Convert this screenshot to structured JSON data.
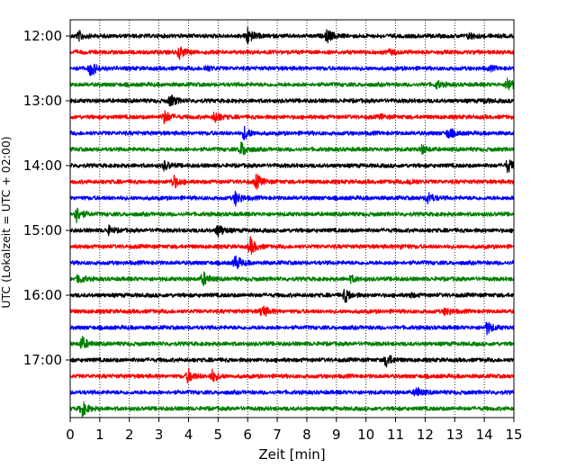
{
  "chart_data": {
    "type": "line",
    "title": "",
    "xlabel": "Zeit  [min]",
    "ylabel": "UTC (Lokalzeit = UTC + 02:00)",
    "xlim": [
      0,
      15
    ],
    "x_ticks": [
      "0",
      "1",
      "2",
      "3",
      "4",
      "5",
      "6",
      "7",
      "8",
      "9",
      "10",
      "11",
      "12",
      "13",
      "14",
      "15"
    ],
    "y_ticks": [
      "12:00",
      "13:00",
      "14:00",
      "15:00",
      "16:00",
      "17:00"
    ],
    "trace_interval_min": 15,
    "grid": "vertical-dotted",
    "colors_cycle": [
      "#000000",
      "#ff0000",
      "#0000ff",
      "#008000"
    ],
    "traces": [
      {
        "start": "12:00",
        "color": "#000000",
        "events": [
          [
            0.3,
            1.0
          ],
          [
            6.0,
            2.0
          ],
          [
            8.7,
            1.5
          ],
          [
            13.5,
            0.7
          ]
        ]
      },
      {
        "start": "12:15",
        "color": "#ff0000",
        "events": [
          [
            3.7,
            1.4
          ],
          [
            10.8,
            0.5
          ]
        ]
      },
      {
        "start": "12:30",
        "color": "#0000ff",
        "events": [
          [
            0.7,
            1.8
          ],
          [
            4.6,
            0.6
          ],
          [
            14.2,
            0.4
          ]
        ]
      },
      {
        "start": "12:45",
        "color": "#008000",
        "events": [
          [
            12.4,
            0.8
          ],
          [
            14.8,
            1.9
          ]
        ]
      },
      {
        "start": "13:00",
        "color": "#000000",
        "events": [
          [
            3.4,
            1.4
          ],
          [
            14.0,
            0.4
          ]
        ]
      },
      {
        "start": "13:15",
        "color": "#ff0000",
        "events": [
          [
            3.2,
            1.5
          ],
          [
            4.9,
            1.3
          ],
          [
            10.5,
            0.4
          ]
        ]
      },
      {
        "start": "13:30",
        "color": "#0000ff",
        "events": [
          [
            5.9,
            1.5
          ],
          [
            12.8,
            1.2
          ]
        ]
      },
      {
        "start": "13:45",
        "color": "#008000",
        "events": [
          [
            5.8,
            1.7
          ],
          [
            11.9,
            0.9
          ]
        ]
      },
      {
        "start": "14:00",
        "color": "#000000",
        "events": [
          [
            3.2,
            1.0
          ],
          [
            14.8,
            1.6
          ]
        ]
      },
      {
        "start": "14:15",
        "color": "#ff0000",
        "events": [
          [
            3.5,
            1.5
          ],
          [
            6.3,
            1.6
          ],
          [
            11.5,
            0.6
          ]
        ]
      },
      {
        "start": "14:30",
        "color": "#0000ff",
        "events": [
          [
            5.6,
            1.6
          ],
          [
            12.1,
            1.3
          ]
        ]
      },
      {
        "start": "14:45",
        "color": "#008000",
        "events": [
          [
            0.2,
            2.0
          ]
        ]
      },
      {
        "start": "15:00",
        "color": "#000000",
        "events": [
          [
            1.3,
            0.9
          ],
          [
            5.0,
            1.5
          ]
        ]
      },
      {
        "start": "15:15",
        "color": "#ff0000",
        "events": [
          [
            6.1,
            2.0
          ],
          [
            11.2,
            0.4
          ]
        ]
      },
      {
        "start": "15:30",
        "color": "#0000ff",
        "events": [
          [
            5.6,
            1.7
          ]
        ]
      },
      {
        "start": "15:45",
        "color": "#008000",
        "events": [
          [
            0.3,
            1.0
          ],
          [
            4.5,
            1.6
          ],
          [
            9.5,
            0.7
          ]
        ]
      },
      {
        "start": "16:00",
        "color": "#000000",
        "events": [
          [
            9.3,
            1.6
          ],
          [
            11.5,
            0.4
          ]
        ]
      },
      {
        "start": "16:15",
        "color": "#ff0000",
        "events": [
          [
            6.5,
            1.4
          ],
          [
            12.7,
            0.9
          ]
        ]
      },
      {
        "start": "16:30",
        "color": "#0000ff",
        "events": [
          [
            14.1,
            1.4
          ]
        ]
      },
      {
        "start": "16:45",
        "color": "#008000",
        "events": [
          [
            0.4,
            1.6
          ]
        ]
      },
      {
        "start": "17:00",
        "color": "#000000",
        "events": [
          [
            10.7,
            1.6
          ]
        ]
      },
      {
        "start": "17:15",
        "color": "#ff0000",
        "events": [
          [
            4.0,
            1.6
          ],
          [
            4.8,
            1.4
          ]
        ]
      },
      {
        "start": "17:30",
        "color": "#0000ff",
        "events": [
          [
            11.7,
            1.2
          ]
        ]
      },
      {
        "start": "17:45",
        "color": "#008000",
        "events": [
          [
            0.4,
            1.8
          ]
        ]
      }
    ]
  }
}
